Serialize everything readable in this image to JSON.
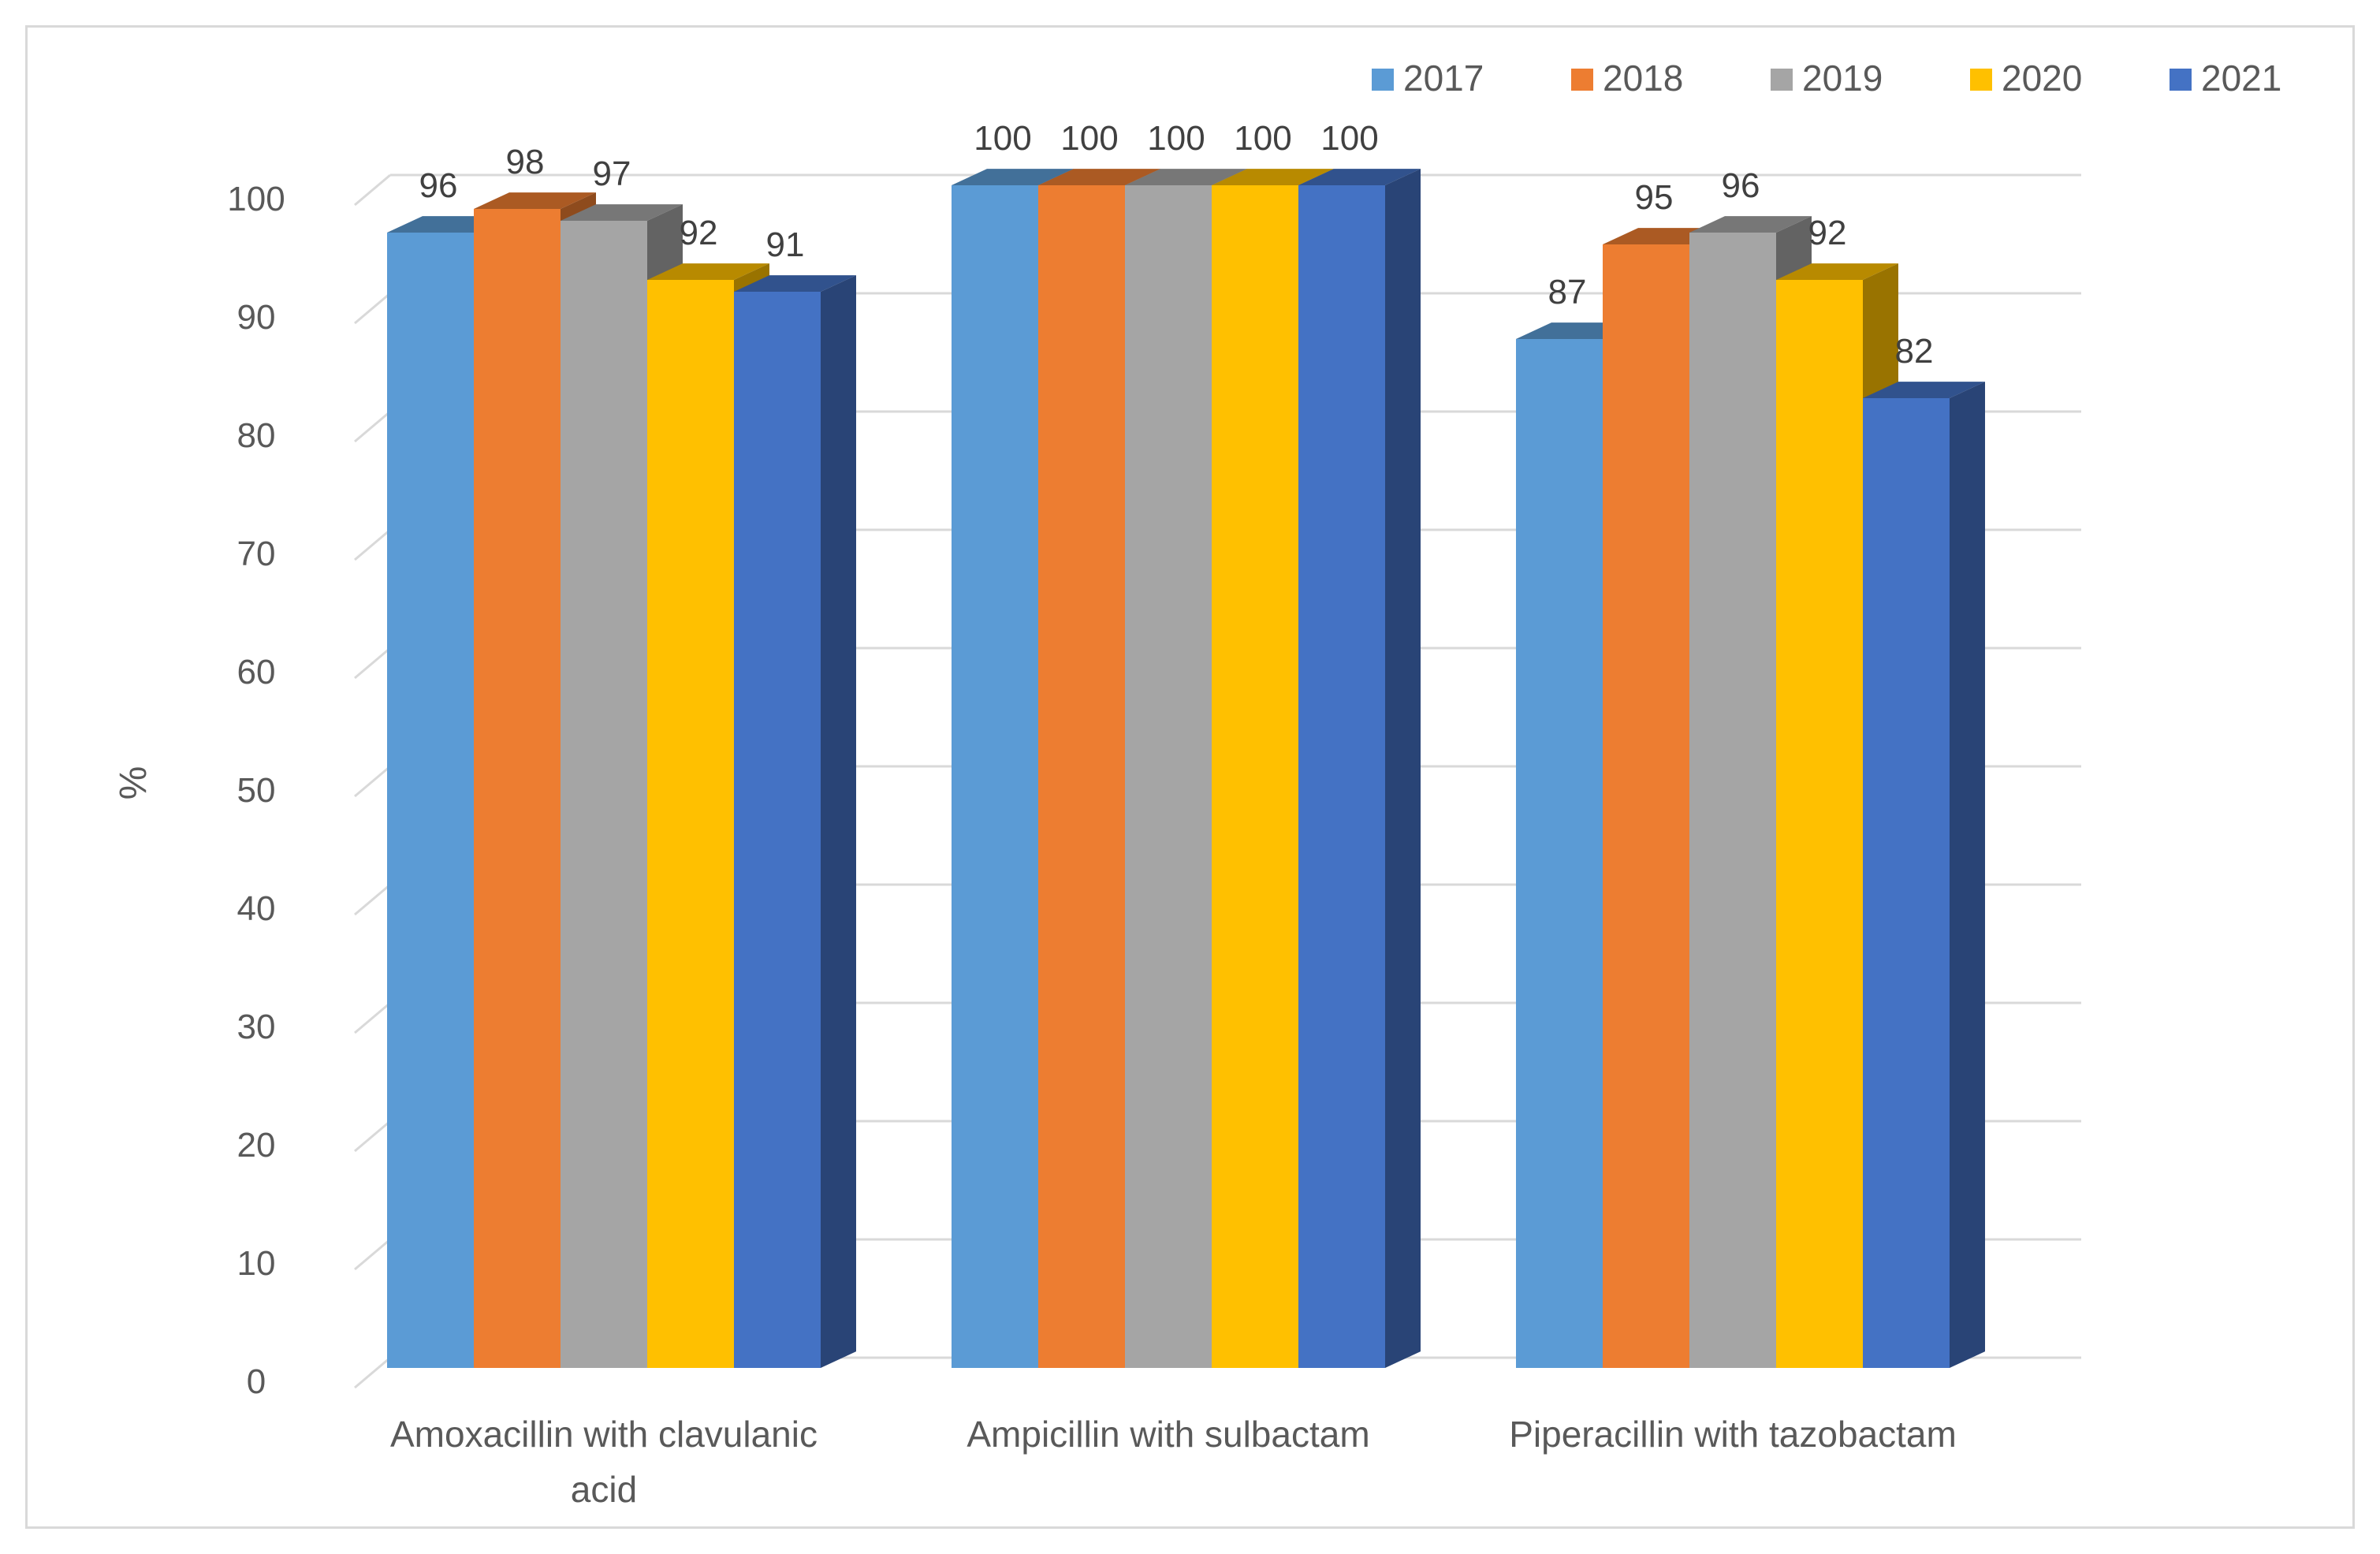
{
  "chart_data": {
    "type": "bar",
    "style": "3d-clustered-column",
    "ylabel": "%",
    "xlabel": "",
    "ylim": [
      0,
      100
    ],
    "ytick_step": 10,
    "grid": true,
    "legend_position": "top-right",
    "categories": [
      [
        "Amoxacillin with clavulanic",
        "acid"
      ],
      [
        "Ampicillin with sulbactam"
      ],
      [
        "Piperacillin with tazobactam"
      ]
    ],
    "series": [
      {
        "name": "2017",
        "color": "#5B9BD5",
        "values": [
          96,
          100,
          87
        ]
      },
      {
        "name": "2018",
        "color": "#ED7D31",
        "values": [
          98,
          100,
          95
        ]
      },
      {
        "name": "2019",
        "color": "#A5A5A5",
        "values": [
          97,
          100,
          96
        ]
      },
      {
        "name": "2020",
        "color": "#FFC000",
        "values": [
          92,
          100,
          92
        ]
      },
      {
        "name": "2021",
        "color": "#4472C4",
        "values": [
          91,
          100,
          82
        ]
      }
    ]
  }
}
